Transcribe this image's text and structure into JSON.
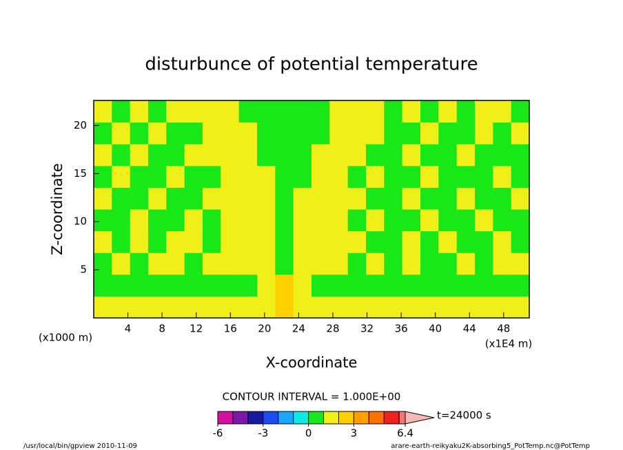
{
  "chart_data": {
    "type": "contour",
    "title": "disturbunce of potential temperature",
    "x_label": "X-coordinate",
    "y_label": "Z-coordinate",
    "x_unit": "(x1000 m)",
    "x_unit2": "(x1E4 m)",
    "xlim": [
      0,
      51
    ],
    "ylim": [
      0,
      22.6
    ],
    "xticks": [
      4,
      8,
      12,
      16,
      20,
      24,
      28,
      32,
      36,
      40,
      44,
      48
    ],
    "yticks": [
      5,
      10,
      15,
      20
    ],
    "field": [
      [
        1.5,
        1.5,
        1.5,
        1.5,
        1.5,
        1.5,
        1.5,
        1.5,
        1.5,
        1.5,
        2.5,
        1.5,
        1.5,
        1.5,
        1.5,
        1.5,
        1.5,
        1.5,
        1.5,
        1.5,
        1.5,
        1.5,
        1.5,
        1.5
      ],
      [
        0.5,
        0.5,
        0.5,
        0.5,
        0.5,
        0.5,
        0.5,
        0.5,
        0.5,
        1.5,
        2.5,
        1.5,
        0.5,
        0.5,
        0.5,
        0.5,
        0.5,
        0.5,
        0.5,
        0.5,
        0.5,
        0.5,
        0.5,
        0.5
      ],
      [
        0.5,
        1.5,
        0.5,
        1.5,
        1.5,
        0.5,
        1.5,
        1.5,
        1.5,
        1.5,
        0.5,
        1.5,
        1.5,
        1.5,
        0.5,
        1.5,
        0.5,
        1.5,
        0.5,
        0.5,
        1.5,
        0.5,
        1.5,
        1.5
      ],
      [
        1.5,
        0.5,
        1.5,
        0.5,
        1.5,
        1.5,
        0.5,
        1.5,
        1.5,
        1.5,
        0.5,
        1.5,
        1.5,
        1.5,
        1.5,
        0.5,
        0.5,
        1.5,
        0.5,
        1.5,
        0.5,
        0.5,
        1.5,
        0.5
      ],
      [
        0.5,
        0.5,
        1.5,
        0.5,
        0.5,
        1.5,
        0.5,
        1.5,
        1.5,
        1.5,
        0.5,
        1.5,
        1.5,
        1.5,
        0.5,
        1.5,
        0.5,
        0.5,
        1.5,
        0.5,
        0.5,
        1.5,
        0.5,
        0.5
      ],
      [
        1.5,
        0.5,
        0.5,
        1.5,
        0.5,
        0.5,
        1.5,
        1.5,
        1.5,
        1.5,
        0.5,
        1.5,
        1.5,
        1.5,
        1.5,
        0.5,
        0.5,
        1.5,
        0.5,
        0.5,
        1.5,
        0.5,
        0.5,
        1.5
      ],
      [
        0.5,
        1.5,
        0.5,
        0.5,
        1.5,
        0.5,
        0.5,
        1.5,
        1.5,
        1.5,
        0.5,
        0.5,
        1.5,
        1.5,
        0.5,
        1.5,
        0.5,
        0.5,
        1.5,
        0.5,
        0.5,
        0.5,
        1.5,
        0.5
      ],
      [
        1.5,
        0.5,
        1.5,
        0.5,
        0.5,
        1.5,
        1.5,
        1.5,
        1.5,
        0.5,
        0.5,
        0.5,
        1.5,
        1.5,
        1.5,
        0.5,
        0.5,
        1.5,
        0.5,
        0.5,
        1.5,
        0.5,
        0.5,
        0.5
      ],
      [
        0.5,
        1.5,
        0.5,
        1.5,
        0.5,
        0.5,
        1.5,
        1.5,
        1.5,
        0.5,
        0.5,
        0.5,
        0.5,
        1.5,
        1.5,
        1.5,
        0.5,
        0.5,
        1.5,
        0.5,
        0.5,
        1.5,
        0.5,
        1.5
      ],
      [
        1.5,
        0.5,
        1.5,
        0.5,
        1.5,
        1.5,
        1.5,
        1.5,
        0.5,
        0.5,
        0.5,
        0.5,
        0.5,
        1.5,
        1.5,
        1.5,
        0.5,
        1.5,
        0.5,
        1.5,
        0.5,
        1.5,
        1.5,
        0.5
      ]
    ],
    "colorbar": {
      "title": "CONTOUR INTERVAL = 1.000E+00",
      "levels": [
        -6,
        -5,
        -4,
        -3,
        -2,
        -1,
        0,
        1,
        2,
        3,
        4,
        5,
        6,
        6.4
      ],
      "colors": [
        "#d010a0",
        "#7a18a8",
        "#1818a0",
        "#1a4cf0",
        "#18a8ff",
        "#10e8e8",
        "#18e818",
        "#f0f018",
        "#ffd000",
        "#ffa000",
        "#ff7000",
        "#f02020",
        "#f07878"
      ],
      "over_color": "#f8b8b8",
      "ticks": [
        -6,
        -3,
        0,
        3,
        6.4
      ]
    },
    "time_label": "t=24000 s",
    "footer_left": "/usr/local/bin/gpview  2010-11-09",
    "footer_right": "arare-earth-reikyaku2K-absorbing5_PotTemp.nc@PotTemp"
  }
}
